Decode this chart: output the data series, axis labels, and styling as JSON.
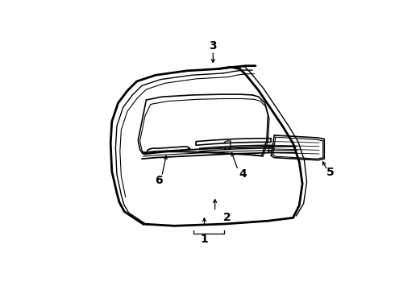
{
  "background_color": "#ffffff",
  "line_color": "#000000",
  "fig_width": 4.9,
  "fig_height": 3.6,
  "dpi": 100,
  "label_fontsize": 10,
  "label_fontweight": "bold"
}
